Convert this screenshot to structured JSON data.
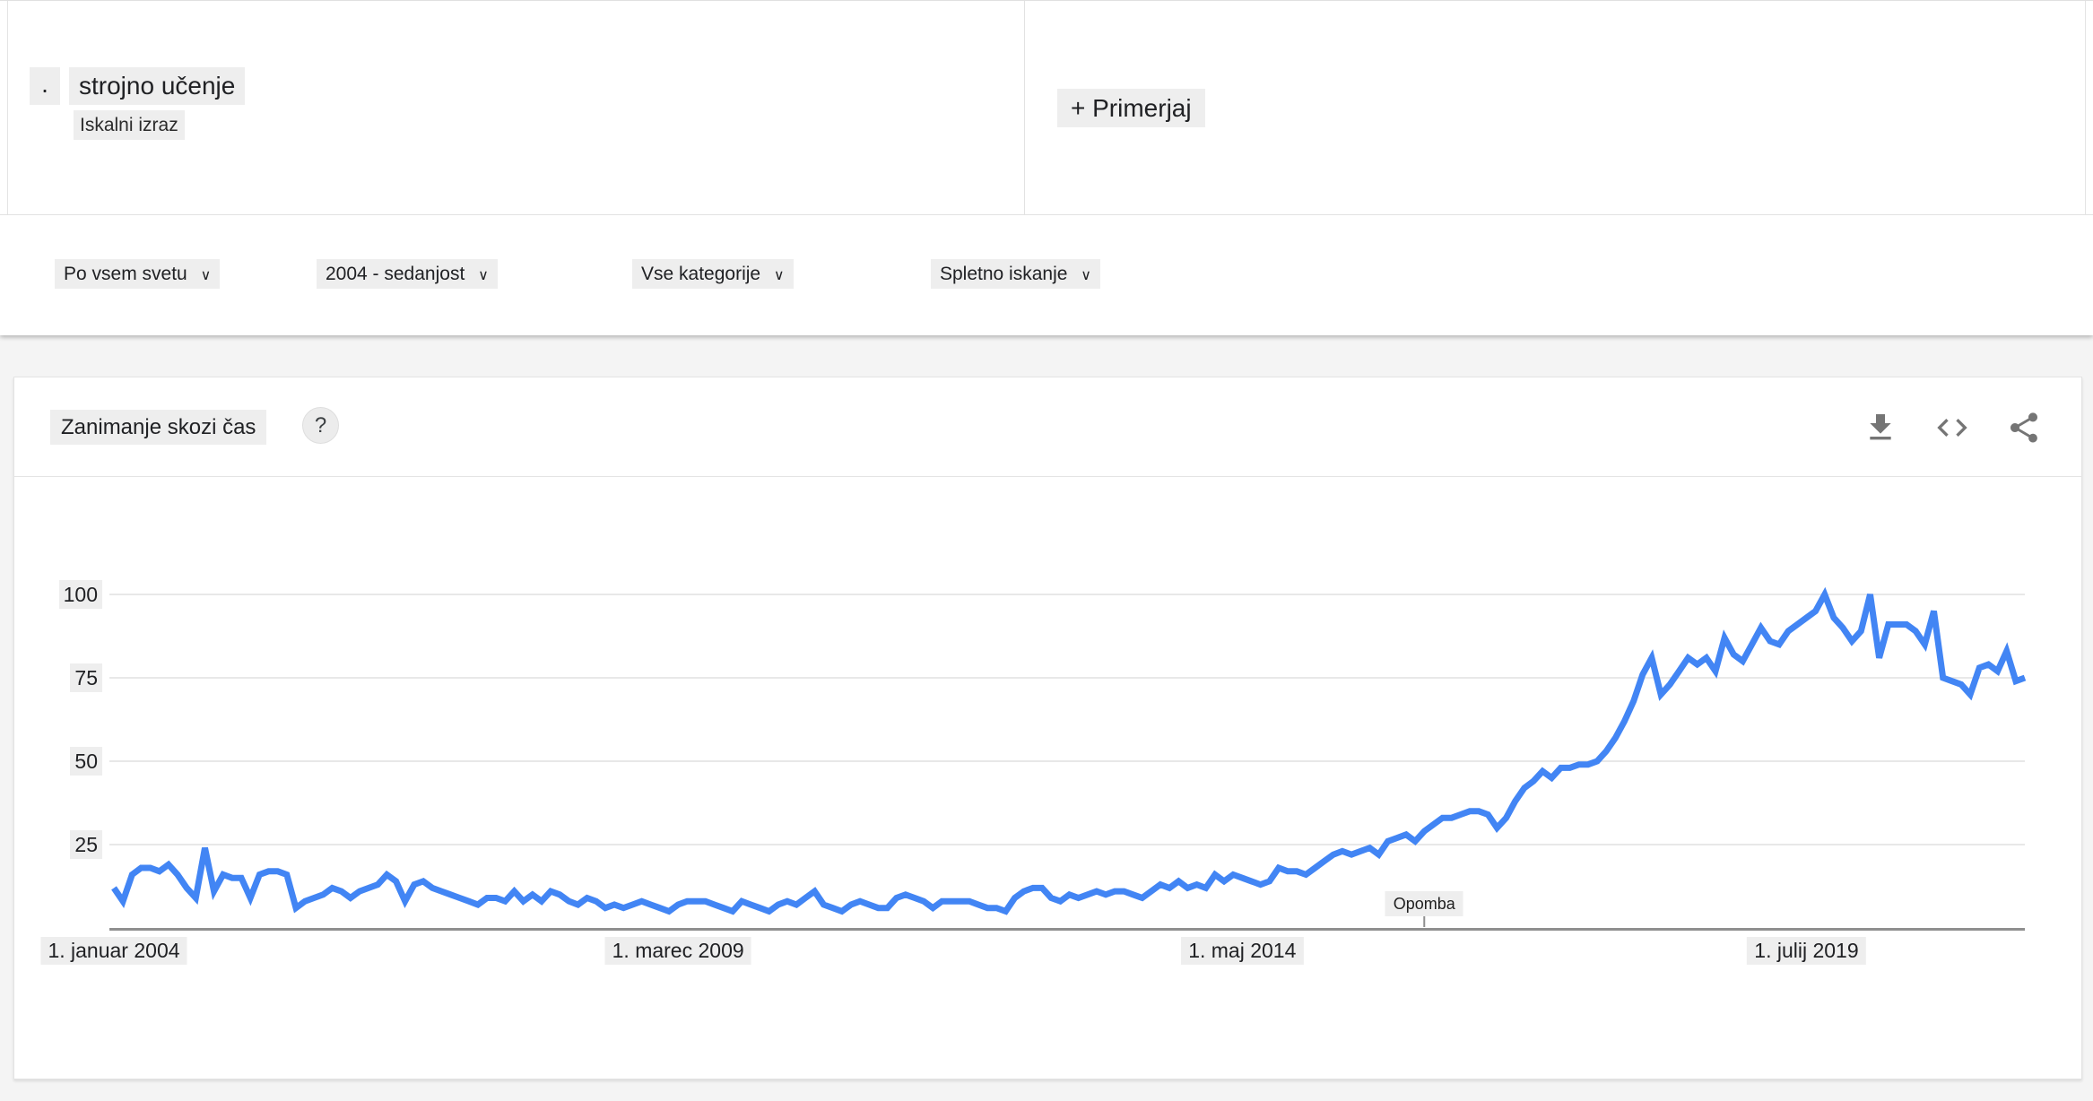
{
  "term_card": {
    "bullet": ".",
    "term": "strojno učenje",
    "subtitle": "Iskalni izraz"
  },
  "compare": {
    "label": "+ Primerjaj"
  },
  "filters": [
    {
      "label": "Po vsem svetu",
      "chevron": "∨"
    },
    {
      "label": "2004 - sedanjost",
      "chevron": "∨"
    },
    {
      "label": "Vse kategorije",
      "chevron": "∨"
    },
    {
      "label": "Spletno iskanje",
      "chevron": "∨"
    }
  ],
  "chart_card": {
    "title": "Zanimanje skozi čas",
    "help_label": "?",
    "actions": [
      "download",
      "embed",
      "share"
    ]
  },
  "colors": {
    "line": "#4285f4",
    "gridline": "#e8e8e8",
    "axis": "#8f8f8f",
    "icon": "#757575",
    "highlight_bg": "#eeeeee"
  },
  "chart_data": {
    "type": "line",
    "title": "Zanimanje skozi čas",
    "x_start_month": "2004-01",
    "x_step_months": 1,
    "x_tick_labels": [
      "1. januar 2004",
      "1. marec 2009",
      "1. maj 2014",
      "1. julij 2019"
    ],
    "x_tick_month_offsets": [
      0,
      62,
      124,
      186
    ],
    "y_ticks": [
      100,
      75,
      50,
      25
    ],
    "ylim": [
      0,
      100
    ],
    "grid": true,
    "note": {
      "label": "Opomba",
      "month_offset": 144
    },
    "series": [
      {
        "name": "strojno učenje",
        "color": "#4285f4",
        "values": [
          12,
          8,
          16,
          18,
          18,
          17,
          19,
          16,
          12,
          9,
          24,
          11,
          16,
          15,
          15,
          9,
          16,
          17,
          17,
          16,
          6,
          8,
          9,
          10,
          12,
          11,
          9,
          11,
          12,
          13,
          16,
          14,
          8,
          13,
          14,
          12,
          11,
          10,
          9,
          8,
          7,
          9,
          9,
          8,
          11,
          8,
          10,
          8,
          11,
          10,
          8,
          7,
          9,
          8,
          6,
          7,
          6,
          7,
          8,
          7,
          6,
          5,
          7,
          8,
          8,
          8,
          7,
          6,
          5,
          8,
          7,
          6,
          5,
          7,
          8,
          7,
          9,
          11,
          7,
          6,
          5,
          7,
          8,
          7,
          6,
          6,
          9,
          10,
          9,
          8,
          6,
          8,
          8,
          8,
          8,
          7,
          6,
          6,
          5,
          9,
          11,
          12,
          12,
          9,
          8,
          10,
          9,
          10,
          11,
          10,
          11,
          11,
          10,
          9,
          11,
          13,
          12,
          14,
          12,
          13,
          12,
          16,
          14,
          16,
          15,
          14,
          13,
          14,
          18,
          17,
          17,
          16,
          18,
          20,
          22,
          23,
          22,
          23,
          24,
          22,
          26,
          27,
          28,
          26,
          29,
          31,
          33,
          33,
          34,
          35,
          35,
          34,
          30,
          33,
          38,
          42,
          44,
          47,
          45,
          48,
          48,
          49,
          49,
          50,
          53,
          57,
          62,
          68,
          76,
          81,
          70,
          73,
          77,
          81,
          79,
          81,
          77,
          87,
          82,
          80,
          85,
          90,
          86,
          85,
          89,
          91,
          93,
          95,
          100,
          93,
          90,
          86,
          89,
          100,
          81,
          91,
          91,
          91,
          89,
          85,
          95,
          75,
          74,
          73,
          70,
          78,
          79,
          77,
          83,
          74,
          75
        ]
      }
    ]
  }
}
